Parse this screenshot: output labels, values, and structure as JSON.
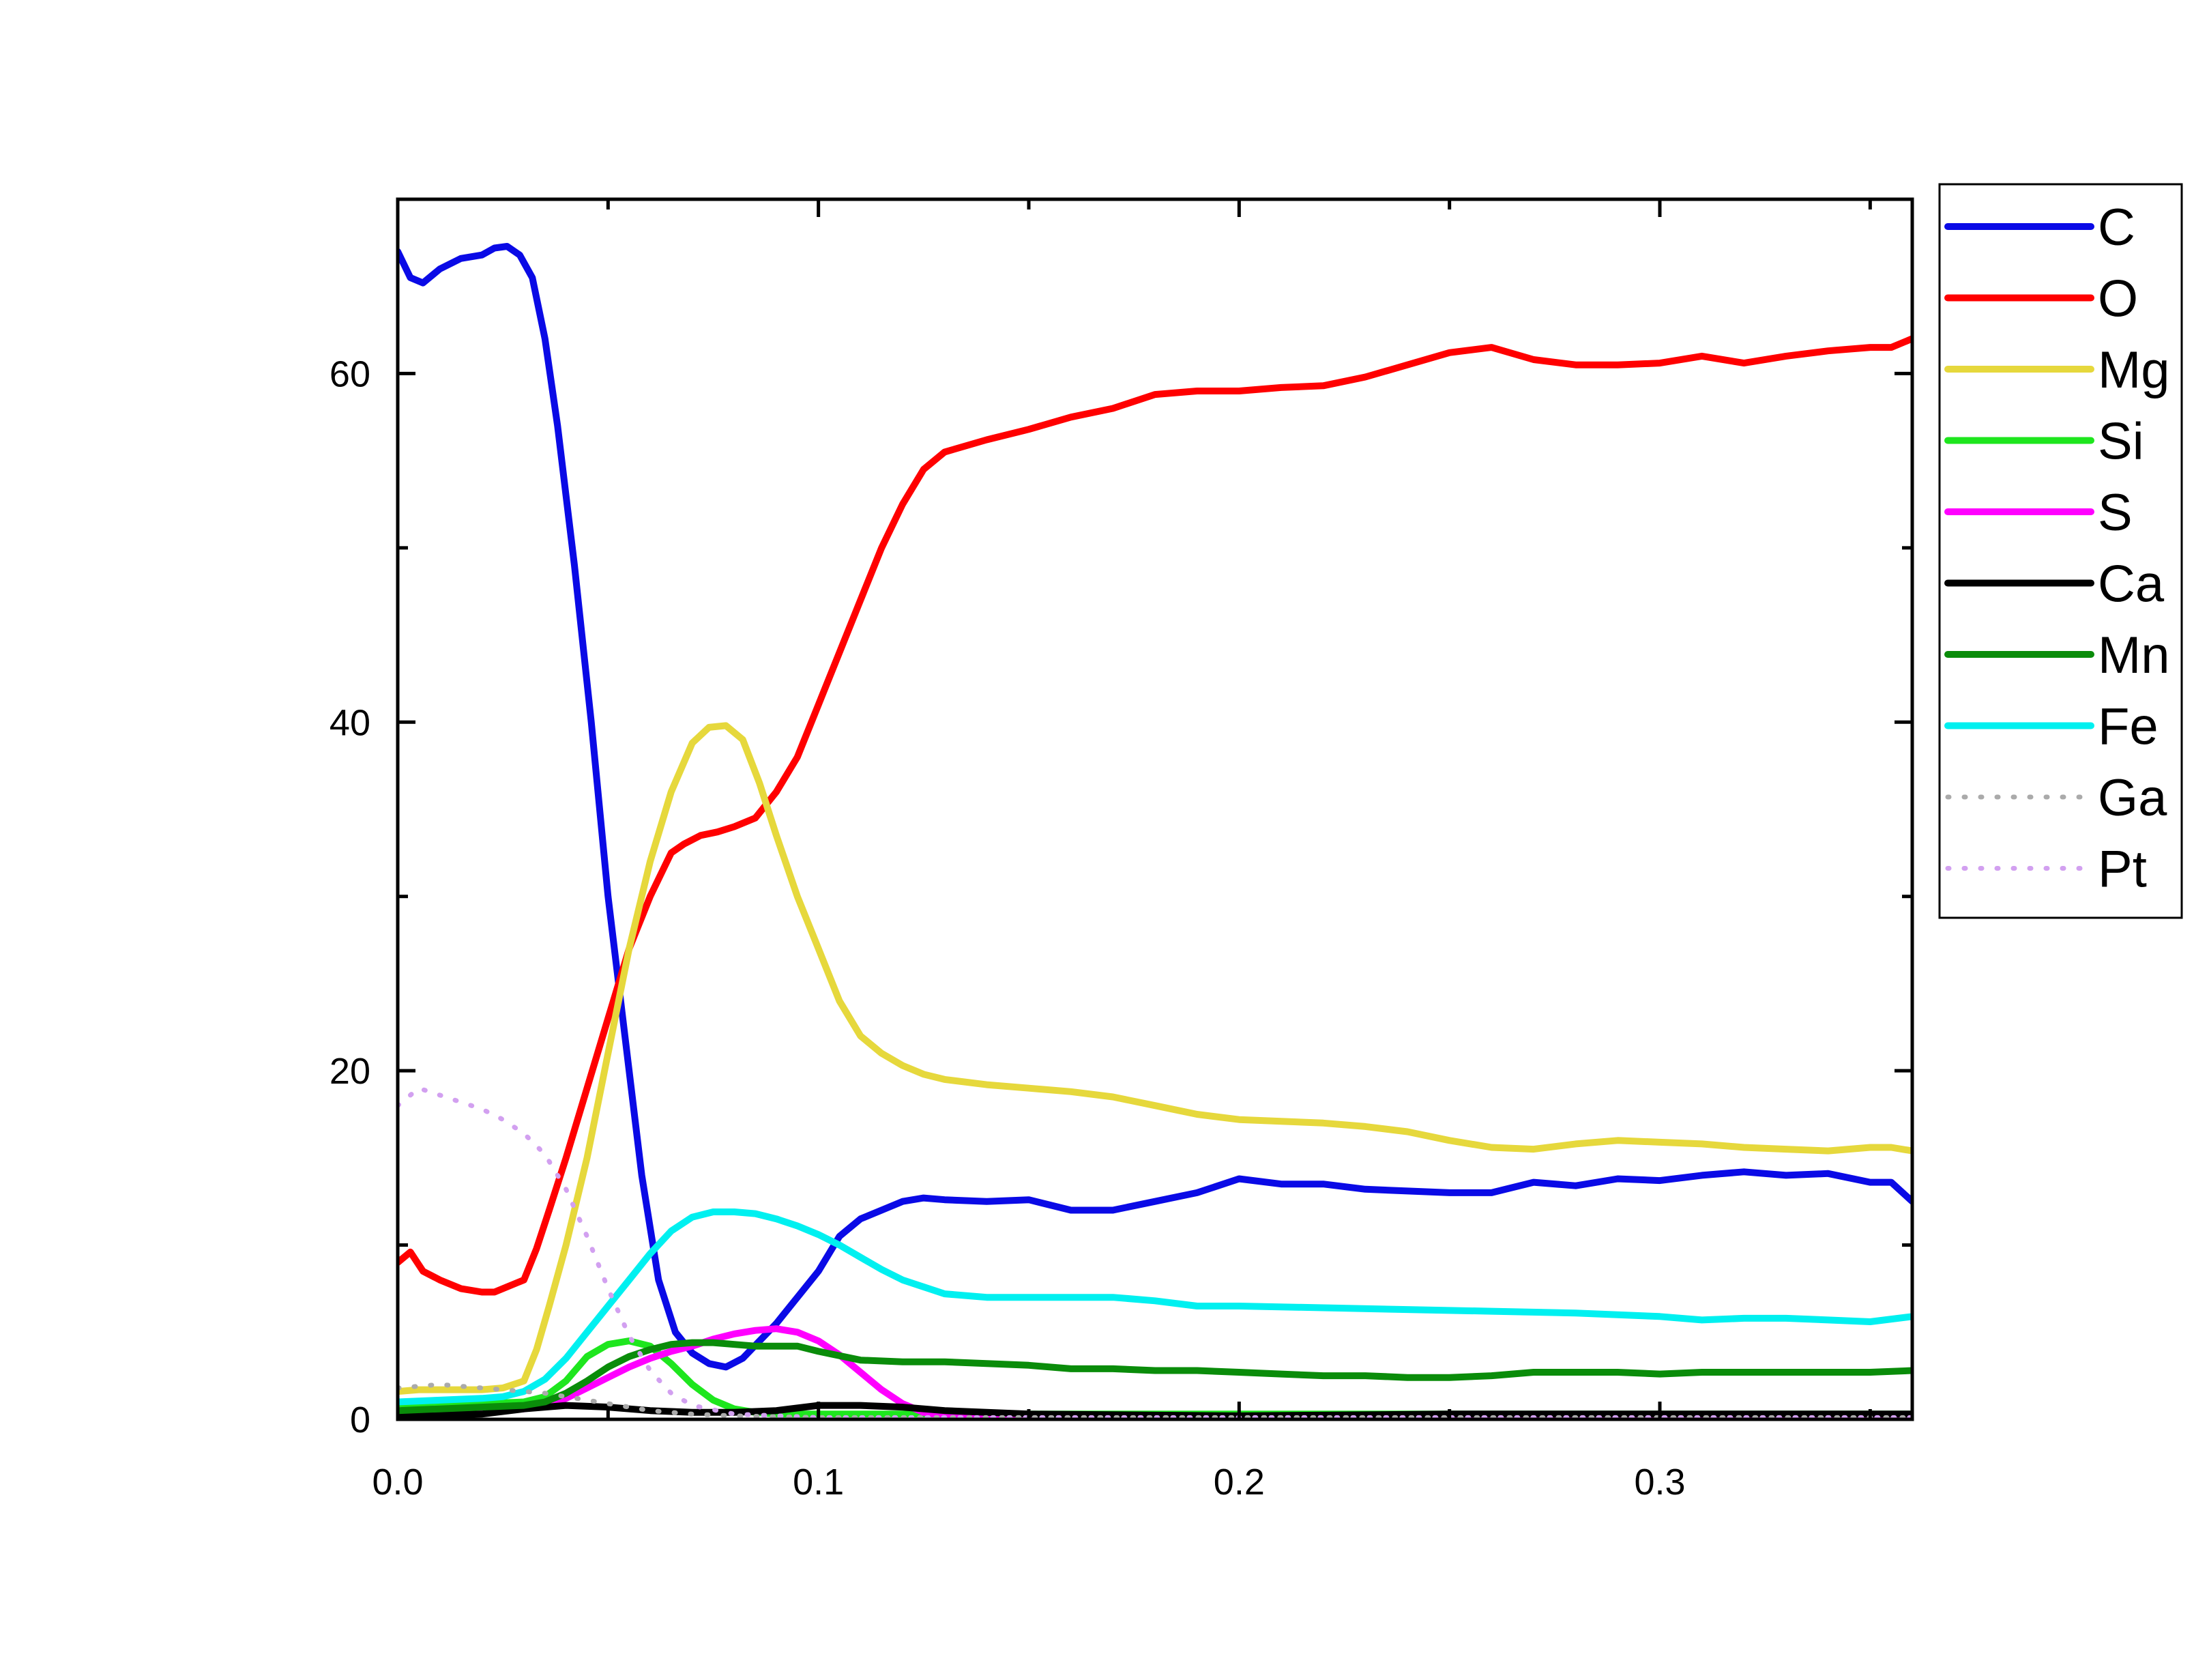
{
  "chart_data": {
    "type": "line",
    "title": "",
    "xlabel": "",
    "ylabel": "",
    "xlim": [
      0,
      0.36
    ],
    "ylim": [
      0,
      70
    ],
    "x_ticks": [
      0,
      0.1,
      0.2,
      0.3
    ],
    "x_tick_labels": [
      "0.0",
      "0.1",
      "0.2",
      "0.3"
    ],
    "x_minor_ticks": [
      0.05,
      0.15,
      0.25,
      0.35
    ],
    "y_ticks": [
      0,
      20,
      40,
      60
    ],
    "y_tick_labels": [
      "0",
      "20",
      "40",
      "60"
    ],
    "y_minor_ticks": [
      10,
      30,
      50
    ],
    "grid": false,
    "legend_position": "outside-right-top",
    "series": [
      {
        "name": "C",
        "color": "#0a0ae6",
        "dash": "solid",
        "x": [
          0,
          0.003,
          0.006,
          0.01,
          0.015,
          0.02,
          0.023,
          0.026,
          0.029,
          0.032,
          0.035,
          0.038,
          0.042,
          0.046,
          0.05,
          0.054,
          0.058,
          0.062,
          0.066,
          0.07,
          0.074,
          0.078,
          0.082,
          0.086,
          0.09,
          0.095,
          0.1,
          0.105,
          0.11,
          0.115,
          0.12,
          0.125,
          0.13,
          0.14,
          0.15,
          0.16,
          0.17,
          0.18,
          0.19,
          0.2,
          0.21,
          0.22,
          0.23,
          0.24,
          0.25,
          0.26,
          0.27,
          0.28,
          0.29,
          0.3,
          0.31,
          0.32,
          0.33,
          0.34,
          0.35,
          0.355,
          0.36
        ],
        "y": [
          67,
          65.5,
          65.2,
          66,
          66.6,
          66.8,
          67.2,
          67.3,
          66.8,
          65.5,
          62,
          57,
          49,
          40,
          30,
          22,
          14,
          8,
          5,
          3.8,
          3.2,
          3,
          3.5,
          4.5,
          5.5,
          7,
          8.5,
          10.5,
          11.5,
          12,
          12.5,
          12.7,
          12.6,
          12.5,
          12.6,
          12,
          12,
          12.5,
          13,
          13.8,
          13.5,
          13.5,
          13.2,
          13.1,
          13,
          13,
          13.6,
          13.4,
          13.8,
          13.7,
          14,
          14.2,
          14,
          14.1,
          13.6,
          13.6,
          12.5
        ]
      },
      {
        "name": "O",
        "color": "#ff0000",
        "dash": "solid",
        "x": [
          0,
          0.003,
          0.006,
          0.01,
          0.015,
          0.02,
          0.023,
          0.026,
          0.03,
          0.033,
          0.036,
          0.04,
          0.045,
          0.05,
          0.055,
          0.06,
          0.065,
          0.068,
          0.072,
          0.076,
          0.08,
          0.085,
          0.09,
          0.095,
          0.1,
          0.105,
          0.11,
          0.115,
          0.12,
          0.125,
          0.13,
          0.14,
          0.15,
          0.16,
          0.17,
          0.18,
          0.19,
          0.2,
          0.21,
          0.22,
          0.23,
          0.24,
          0.25,
          0.26,
          0.27,
          0.28,
          0.29,
          0.3,
          0.31,
          0.32,
          0.33,
          0.34,
          0.35,
          0.355,
          0.36
        ],
        "y": [
          9,
          9.6,
          8.5,
          8,
          7.5,
          7.3,
          7.3,
          7.6,
          8,
          9.8,
          12,
          15,
          19,
          23,
          27,
          30,
          32.5,
          33,
          33.5,
          33.7,
          34,
          34.5,
          36,
          38,
          41,
          44,
          47,
          50,
          52.5,
          54.5,
          55.5,
          56.2,
          56.8,
          57.5,
          58,
          58.8,
          59,
          59,
          59.2,
          59.3,
          59.8,
          60.5,
          61.2,
          61.5,
          60.8,
          60.5,
          60.5,
          60.6,
          61,
          60.6,
          61,
          61.3,
          61.5,
          61.5,
          62
        ]
      },
      {
        "name": "Mg",
        "color": "#e6d83c",
        "dash": "solid",
        "x": [
          0,
          0.005,
          0.01,
          0.015,
          0.02,
          0.025,
          0.03,
          0.033,
          0.036,
          0.04,
          0.045,
          0.05,
          0.055,
          0.06,
          0.065,
          0.07,
          0.074,
          0.078,
          0.082,
          0.086,
          0.09,
          0.095,
          0.1,
          0.105,
          0.11,
          0.115,
          0.12,
          0.125,
          0.13,
          0.14,
          0.15,
          0.16,
          0.17,
          0.18,
          0.19,
          0.2,
          0.21,
          0.22,
          0.23,
          0.24,
          0.25,
          0.26,
          0.27,
          0.28,
          0.29,
          0.3,
          0.31,
          0.32,
          0.33,
          0.34,
          0.35,
          0.355,
          0.36
        ],
        "y": [
          1.6,
          1.7,
          1.7,
          1.7,
          1.7,
          1.8,
          2.2,
          4,
          6.5,
          10,
          15,
          21,
          27,
          32,
          36,
          38.8,
          39.7,
          39.8,
          39,
          36.5,
          33.5,
          30,
          27,
          24,
          22,
          21,
          20.3,
          19.8,
          19.5,
          19.2,
          19,
          18.8,
          18.5,
          18,
          17.5,
          17.2,
          17.1,
          17,
          16.8,
          16.5,
          16,
          15.6,
          15.5,
          15.8,
          16,
          15.9,
          15.8,
          15.6,
          15.5,
          15.4,
          15.6,
          15.6,
          15.4
        ]
      },
      {
        "name": "Si",
        "color": "#1ee61e",
        "dash": "solid",
        "x": [
          0,
          0.01,
          0.02,
          0.03,
          0.035,
          0.04,
          0.045,
          0.05,
          0.055,
          0.06,
          0.065,
          0.07,
          0.075,
          0.08,
          0.085,
          0.09,
          0.1,
          0.12,
          0.15,
          0.2,
          0.25,
          0.3,
          0.36
        ],
        "y": [
          0.9,
          0.9,
          0.9,
          1.0,
          1.3,
          2.2,
          3.6,
          4.3,
          4.5,
          4.2,
          3.2,
          2,
          1.1,
          0.6,
          0.4,
          0.3,
          0.3,
          0.3,
          0.3,
          0.3,
          0.3,
          0.3,
          0.3
        ]
      },
      {
        "name": "S",
        "color": "#ff00ff",
        "dash": "solid",
        "x": [
          0,
          0.02,
          0.03,
          0.035,
          0.04,
          0.045,
          0.05,
          0.055,
          0.06,
          0.065,
          0.07,
          0.075,
          0.08,
          0.085,
          0.09,
          0.095,
          0.1,
          0.105,
          0.11,
          0.115,
          0.12,
          0.125,
          0.13,
          0.14,
          0.2,
          0.36
        ],
        "y": [
          0.5,
          0.5,
          0.6,
          0.8,
          1.2,
          1.8,
          2.4,
          3,
          3.5,
          3.9,
          4.2,
          4.6,
          4.9,
          5.1,
          5.2,
          5,
          4.5,
          3.7,
          2.7,
          1.7,
          0.9,
          0.4,
          0.2,
          0.1,
          0.1,
          0.1
        ]
      },
      {
        "name": "Ca",
        "color": "#000000",
        "dash": "solid",
        "x": [
          0,
          0.02,
          0.03,
          0.04,
          0.05,
          0.06,
          0.07,
          0.08,
          0.09,
          0.1,
          0.11,
          0.12,
          0.13,
          0.15,
          0.2,
          0.25,
          0.3,
          0.36
        ],
        "y": [
          0.2,
          0.3,
          0.6,
          0.8,
          0.7,
          0.5,
          0.4,
          0.4,
          0.5,
          0.8,
          0.8,
          0.7,
          0.5,
          0.3,
          0.2,
          0.3,
          0.3,
          0.3
        ]
      },
      {
        "name": "Mn",
        "color": "#0a8c0a",
        "dash": "solid",
        "x": [
          0,
          0.01,
          0.02,
          0.03,
          0.035,
          0.04,
          0.045,
          0.05,
          0.055,
          0.06,
          0.065,
          0.07,
          0.075,
          0.08,
          0.085,
          0.09,
          0.095,
          0.1,
          0.11,
          0.12,
          0.13,
          0.14,
          0.15,
          0.16,
          0.17,
          0.18,
          0.19,
          0.2,
          0.21,
          0.22,
          0.23,
          0.24,
          0.25,
          0.26,
          0.27,
          0.28,
          0.29,
          0.3,
          0.31,
          0.32,
          0.33,
          0.34,
          0.35,
          0.36
        ],
        "y": [
          0.5,
          0.6,
          0.7,
          0.8,
          1.0,
          1.5,
          2.2,
          3,
          3.6,
          4,
          4.3,
          4.4,
          4.4,
          4.3,
          4.2,
          4.2,
          4.2,
          3.9,
          3.4,
          3.3,
          3.3,
          3.2,
          3.1,
          2.9,
          2.9,
          2.8,
          2.8,
          2.7,
          2.6,
          2.5,
          2.5,
          2.4,
          2.4,
          2.5,
          2.7,
          2.7,
          2.7,
          2.6,
          2.7,
          2.7,
          2.7,
          2.7,
          2.7,
          2.8
        ]
      },
      {
        "name": "Fe",
        "color": "#00f0f0",
        "dash": "solid",
        "x": [
          0,
          0.01,
          0.02,
          0.025,
          0.03,
          0.035,
          0.04,
          0.045,
          0.05,
          0.055,
          0.06,
          0.065,
          0.07,
          0.075,
          0.08,
          0.085,
          0.09,
          0.095,
          0.1,
          0.105,
          0.11,
          0.115,
          0.12,
          0.13,
          0.14,
          0.15,
          0.16,
          0.17,
          0.18,
          0.19,
          0.2,
          0.22,
          0.24,
          0.26,
          0.28,
          0.3,
          0.31,
          0.32,
          0.33,
          0.34,
          0.35,
          0.36
        ],
        "y": [
          1.0,
          1.1,
          1.2,
          1.3,
          1.6,
          2.3,
          3.5,
          5,
          6.5,
          8,
          9.5,
          10.8,
          11.6,
          11.9,
          11.9,
          11.8,
          11.5,
          11.1,
          10.6,
          10,
          9.3,
          8.6,
          8,
          7.2,
          7,
          7,
          7,
          7,
          6.8,
          6.5,
          6.5,
          6.4,
          6.3,
          6.2,
          6.1,
          5.9,
          5.7,
          5.8,
          5.8,
          5.7,
          5.6,
          5.9
        ]
      },
      {
        "name": "Ga",
        "color": "#aaaaaa",
        "dash": "dotted",
        "x": [
          0,
          0.005,
          0.01,
          0.015,
          0.02,
          0.025,
          0.03,
          0.035,
          0.04,
          0.045,
          0.05,
          0.055,
          0.06,
          0.065,
          0.07,
          0.08,
          0.1,
          0.15,
          0.2,
          0.25,
          0.3,
          0.36
        ],
        "y": [
          1.8,
          1.9,
          2.0,
          1.9,
          1.8,
          1.7,
          1.6,
          1.5,
          1.3,
          1.1,
          0.9,
          0.7,
          0.5,
          0.4,
          0.3,
          0.2,
          0.1,
          0.1,
          0.1,
          0.1,
          0.1,
          0.1
        ]
      },
      {
        "name": "Pt",
        "color": "#d2a0f0",
        "dash": "dotted",
        "x": [
          0,
          0.005,
          0.01,
          0.015,
          0.02,
          0.025,
          0.03,
          0.035,
          0.04,
          0.045,
          0.05,
          0.055,
          0.06,
          0.065,
          0.07,
          0.08,
          0.1,
          0.15,
          0.2,
          0.25,
          0.3,
          0.36
        ],
        "y": [
          18,
          19,
          18.6,
          18.2,
          17.8,
          17.2,
          16.4,
          15.2,
          13.2,
          10.5,
          7.5,
          4.8,
          2.8,
          1.5,
          0.8,
          0.3,
          0.1,
          0.1,
          0.1,
          0.1,
          0.1,
          0.1
        ]
      }
    ]
  }
}
